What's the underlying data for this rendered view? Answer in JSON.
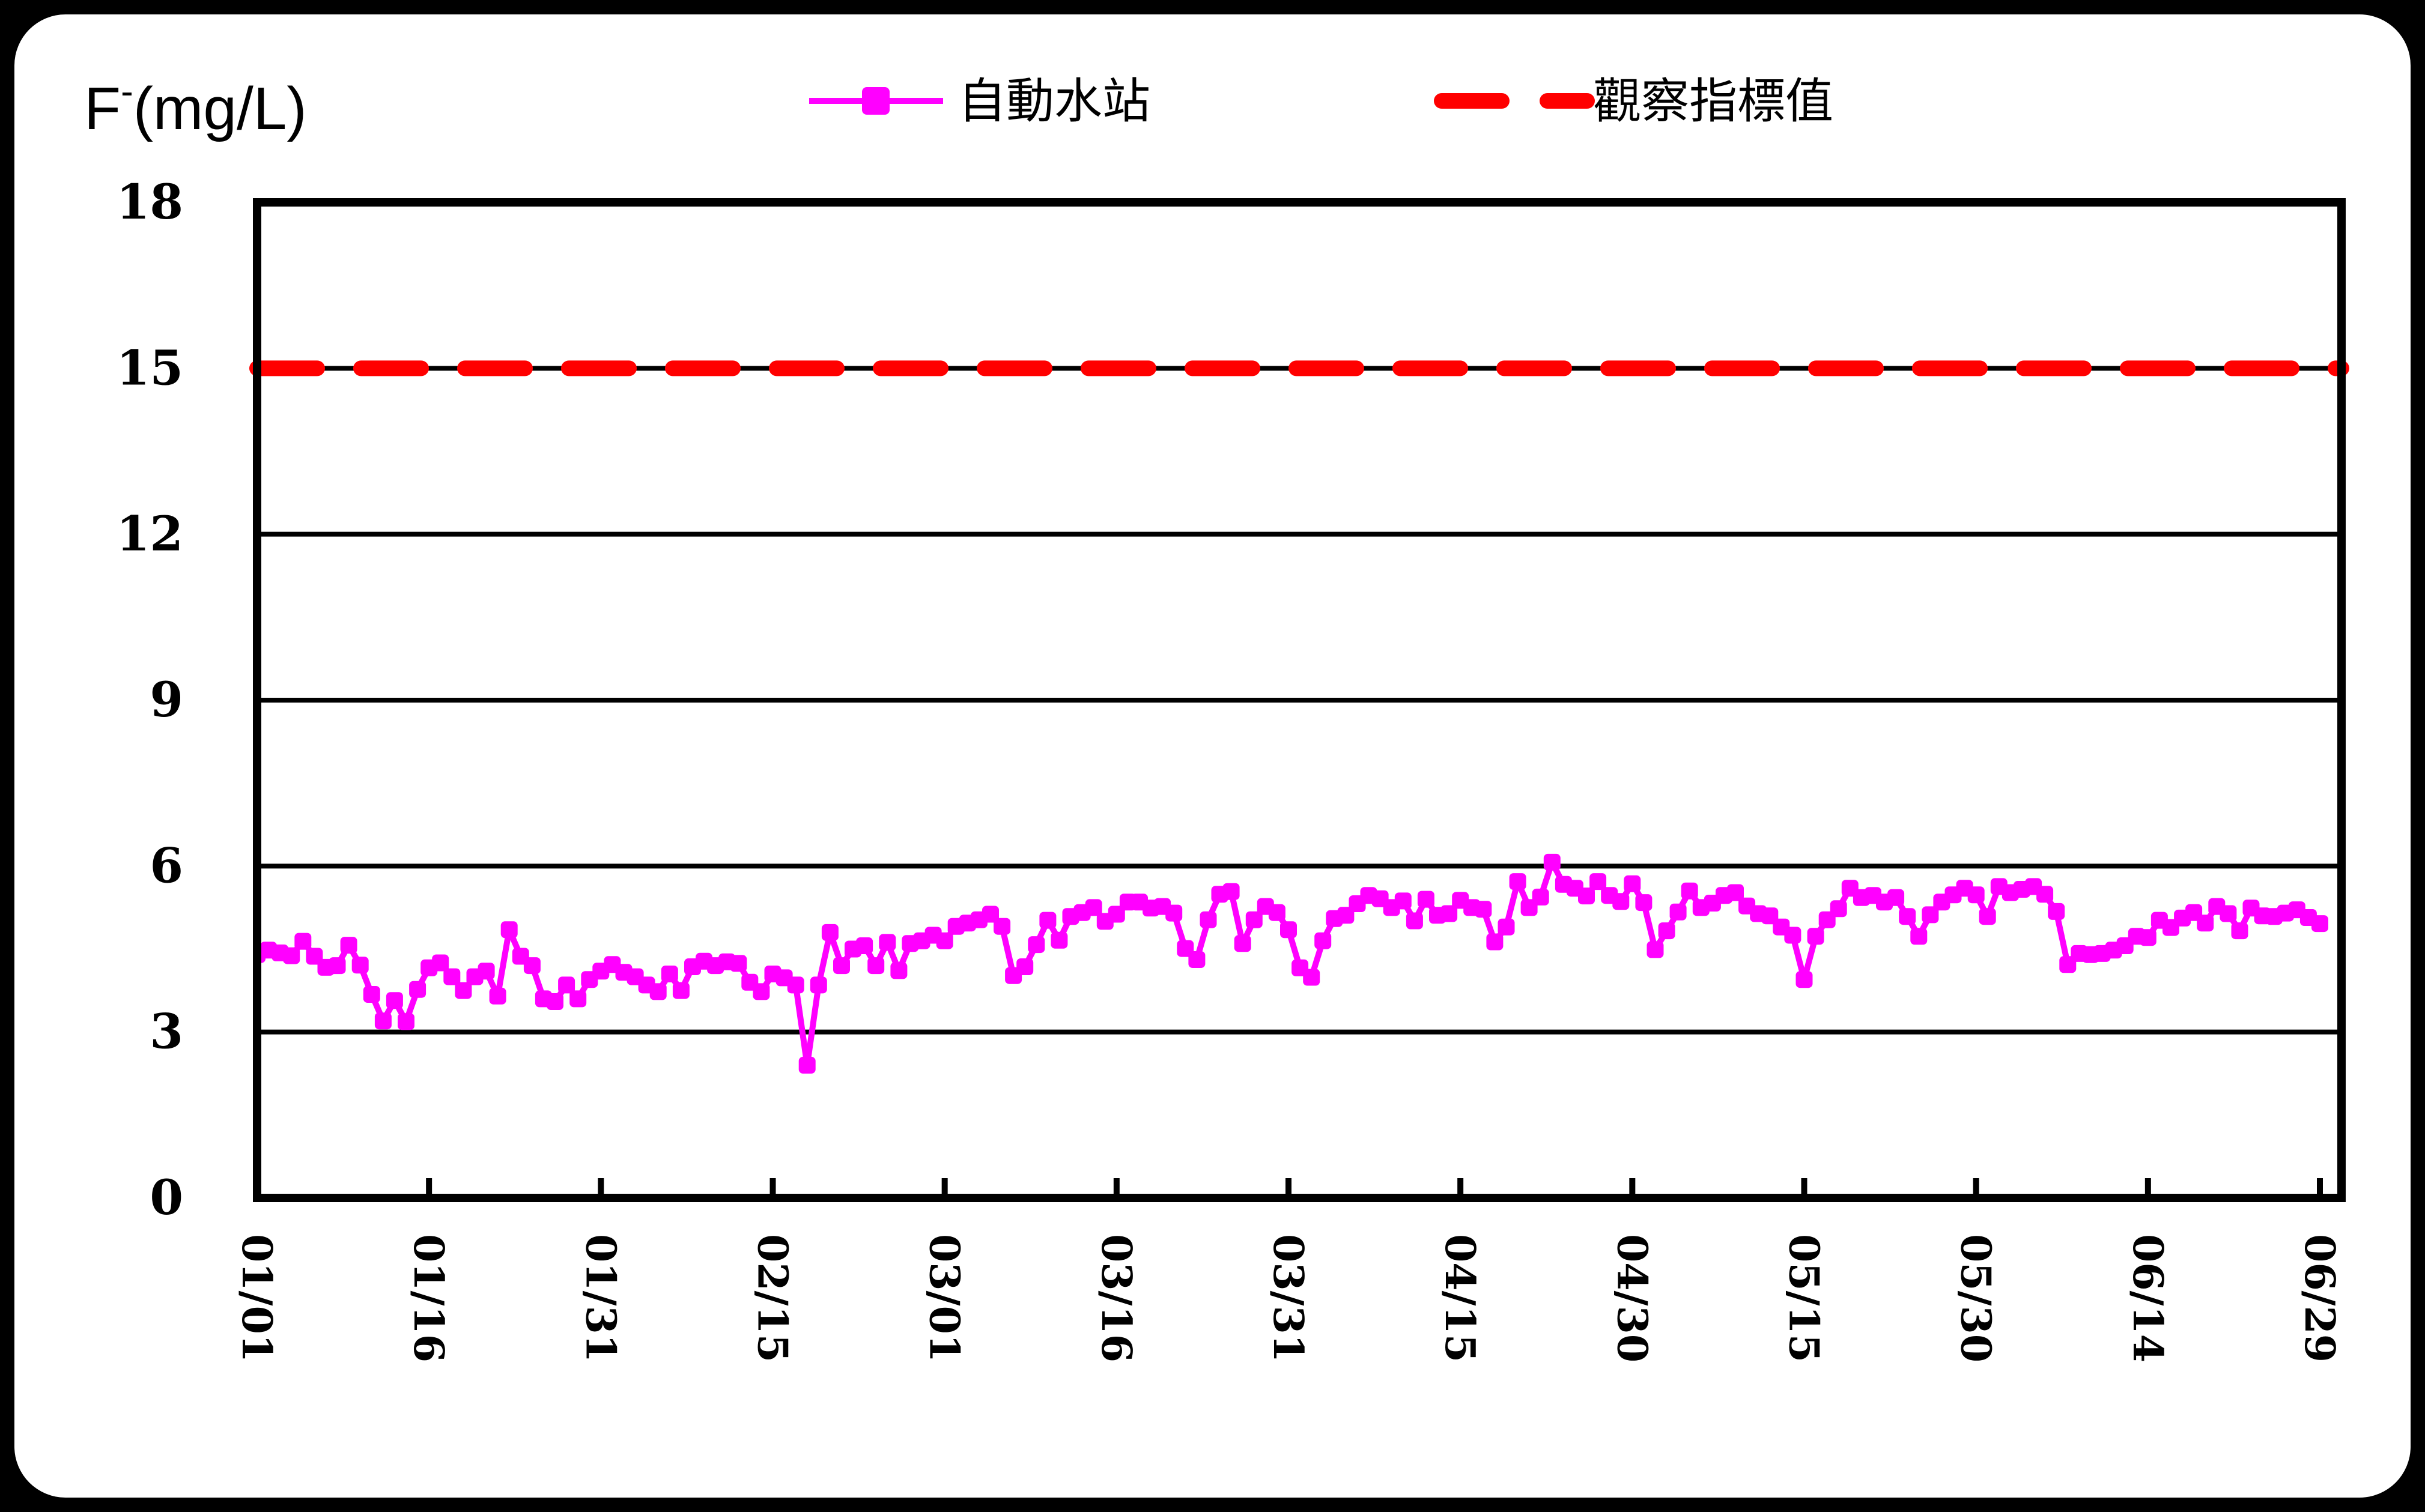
{
  "title": {
    "prefix": "F",
    "superscript": "-",
    "suffix": "(mg/L)"
  },
  "legend": [
    {
      "label": "自動水站",
      "color": "#FF00FF",
      "line": "solid",
      "marker": "square"
    },
    {
      "label": "觀察指標值",
      "color": "#FF0000",
      "line": "dashed",
      "marker": "none"
    }
  ],
  "chart_data": {
    "type": "line",
    "title": "F-(mg/L)",
    "ylabel": "F- (mg/L)",
    "ylim": [
      0,
      18
    ],
    "yticks": [
      0,
      3,
      6,
      9,
      12,
      15,
      18
    ],
    "grid": "horizontal",
    "legend_position": "top",
    "x_tick_labels": [
      "01/01",
      "01/16",
      "01/31",
      "02/15",
      "03/01",
      "03/16",
      "03/31",
      "04/15",
      "04/30",
      "05/15",
      "05/30",
      "06/14",
      "06/29"
    ],
    "x_tick_day_indices": [
      0,
      15,
      30,
      45,
      60,
      75,
      90,
      105,
      120,
      135,
      150,
      165,
      180
    ],
    "series": [
      {
        "name": "自動水站",
        "color": "#FF00FF",
        "style": "solid-with-square-markers",
        "values": [
          4.4,
          4.48,
          4.43,
          4.38,
          4.64,
          4.37,
          4.17,
          4.2,
          4.57,
          4.21,
          3.68,
          3.2,
          3.57,
          3.19,
          3.77,
          4.16,
          4.25,
          4.0,
          3.75,
          4.0,
          4.1,
          3.65,
          4.85,
          4.37,
          4.2,
          3.6,
          3.55,
          3.85,
          3.6,
          3.95,
          4.1,
          4.22,
          4.08,
          4.0,
          3.85,
          3.73,
          4.05,
          3.75,
          4.18,
          4.28,
          4.2,
          4.27,
          4.24,
          3.9,
          3.73,
          4.05,
          3.98,
          3.85,
          2.4,
          3.85,
          4.8,
          4.2,
          4.5,
          4.56,
          4.2,
          4.62,
          4.11,
          4.6,
          4.65,
          4.75,
          4.65,
          4.91,
          4.97,
          5.03,
          5.13,
          4.91,
          4.02,
          4.18,
          4.58,
          5.02,
          4.66,
          5.09,
          5.16,
          5.25,
          5.0,
          5.13,
          5.35,
          5.35,
          5.24,
          5.27,
          5.15,
          4.51,
          4.31,
          5.03,
          5.49,
          5.54,
          4.6,
          5.03,
          5.27,
          5.16,
          4.85,
          4.16,
          3.99,
          4.65,
          5.05,
          5.11,
          5.32,
          5.47,
          5.41,
          5.25,
          5.37,
          5.01,
          5.4,
          5.11,
          5.14,
          5.38,
          5.25,
          5.22,
          4.63,
          4.9,
          5.72,
          5.25,
          5.44,
          6.07,
          5.67,
          5.6,
          5.46,
          5.72,
          5.47,
          5.36,
          5.68,
          5.34,
          4.49,
          4.83,
          5.17,
          5.55,
          5.25,
          5.33,
          5.47,
          5.52,
          5.28,
          5.14,
          5.1,
          4.9,
          4.75,
          3.95,
          4.73,
          5.03,
          5.23,
          5.6,
          5.43,
          5.47,
          5.35,
          5.43,
          5.09,
          4.73,
          5.12,
          5.35,
          5.48,
          5.6,
          5.48,
          5.09,
          5.63,
          5.52,
          5.58,
          5.63,
          5.49,
          5.18,
          4.22,
          4.42,
          4.4,
          4.42,
          4.48,
          4.56,
          4.73,
          4.71,
          5.02,
          4.89,
          5.06,
          5.16,
          4.97,
          5.27,
          5.14,
          4.83,
          5.24,
          5.1,
          5.09,
          5.15,
          5.21,
          5.07,
          4.96
        ]
      },
      {
        "name": "觀察指標值",
        "color": "#FF0000",
        "style": "dashed",
        "constant_value": 15
      }
    ]
  }
}
